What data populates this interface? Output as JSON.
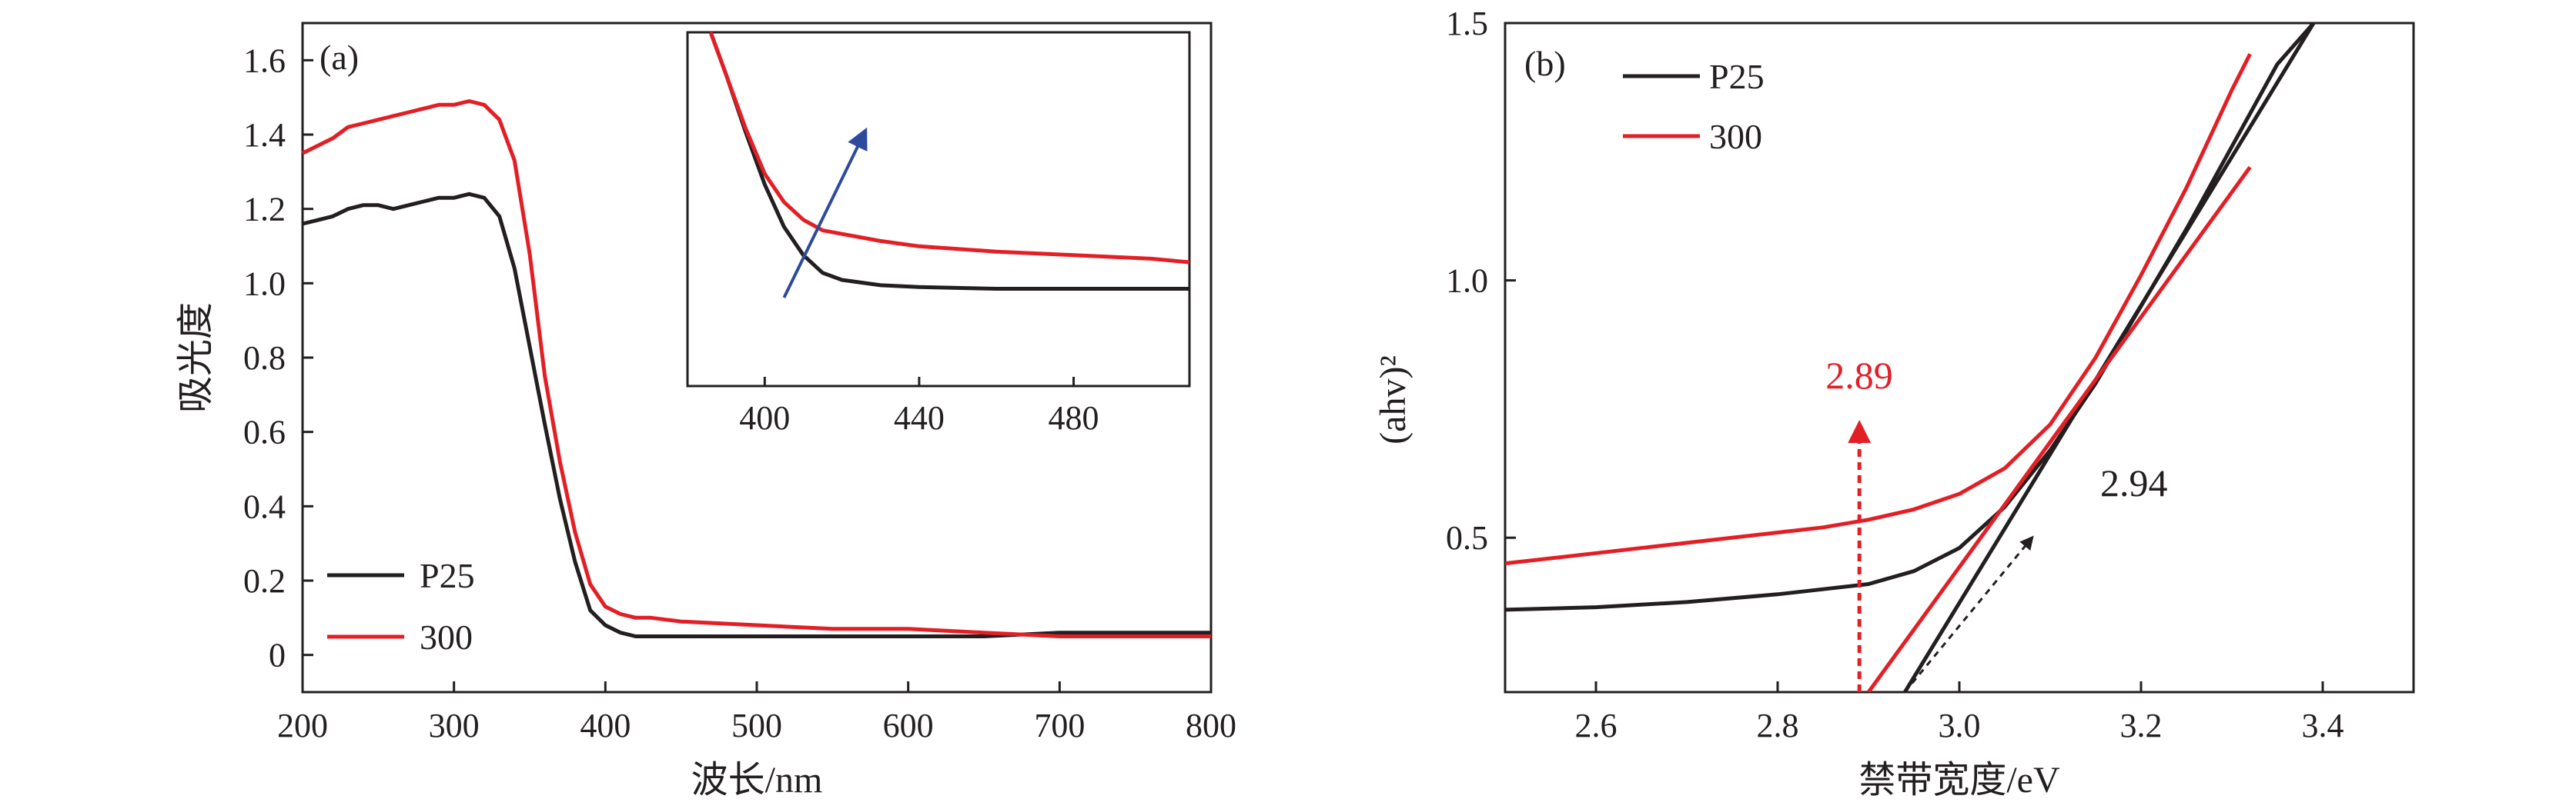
{
  "chart_data": [
    {
      "type": "line",
      "panel_label": "(a)",
      "xlabel": "波长/nm",
      "ylabel": "吸光度",
      "xlim": [
        200,
        800
      ],
      "ylim": [
        -0.1,
        1.7
      ],
      "xticks": [
        "200",
        "300",
        "400",
        "500",
        "600",
        "700",
        "800"
      ],
      "yticks": [
        "0",
        "0.2",
        "0.4",
        "0.6",
        "0.8",
        "1.0",
        "1.2",
        "1.4",
        "1.6"
      ],
      "legend": {
        "position": "bottom-left",
        "entries": [
          "P25",
          "300"
        ]
      },
      "series": [
        {
          "name": "P25",
          "color": "#231f20",
          "x": [
            200,
            210,
            220,
            230,
            240,
            250,
            260,
            270,
            280,
            290,
            300,
            310,
            320,
            330,
            340,
            350,
            360,
            370,
            380,
            390,
            400,
            410,
            420,
            430,
            450,
            500,
            550,
            600,
            650,
            700,
            750,
            800
          ],
          "y": [
            1.16,
            1.17,
            1.18,
            1.2,
            1.21,
            1.21,
            1.2,
            1.21,
            1.22,
            1.23,
            1.23,
            1.24,
            1.23,
            1.18,
            1.04,
            0.83,
            0.62,
            0.42,
            0.25,
            0.12,
            0.08,
            0.06,
            0.05,
            0.05,
            0.05,
            0.05,
            0.05,
            0.05,
            0.05,
            0.06,
            0.06,
            0.06
          ]
        },
        {
          "name": "300",
          "color": "#e31f26",
          "x": [
            200,
            210,
            220,
            230,
            240,
            250,
            260,
            270,
            280,
            290,
            300,
            310,
            320,
            330,
            340,
            350,
            360,
            370,
            380,
            390,
            400,
            410,
            420,
            430,
            450,
            500,
            550,
            600,
            650,
            700,
            750,
            800
          ],
          "y": [
            1.35,
            1.37,
            1.39,
            1.42,
            1.43,
            1.44,
            1.45,
            1.46,
            1.47,
            1.48,
            1.48,
            1.49,
            1.48,
            1.44,
            1.33,
            1.08,
            0.75,
            0.52,
            0.33,
            0.19,
            0.13,
            0.11,
            0.1,
            0.1,
            0.09,
            0.08,
            0.07,
            0.07,
            0.06,
            0.05,
            0.05,
            0.05
          ]
        }
      ],
      "inset": {
        "xlim": [
          380,
          510
        ],
        "ylim": [
          0,
          1
        ],
        "xticks": [
          "400",
          "440",
          "480"
        ],
        "arrow": {
          "from": [
            405,
            0.25
          ],
          "to": [
            426,
            0.72
          ],
          "color": "#2e4a9e"
        },
        "series": [
          {
            "name": "P25",
            "color": "#231f20",
            "x": [
              386,
              390,
              395,
              400,
              405,
              410,
              415,
              420,
              430,
              440,
              460,
              480,
              500,
              510
            ],
            "y": [
              1.0,
              0.88,
              0.72,
              0.57,
              0.45,
              0.37,
              0.32,
              0.3,
              0.285,
              0.28,
              0.275,
              0.275,
              0.275,
              0.275
            ]
          },
          {
            "name": "300",
            "color": "#e31f26",
            "x": [
              386,
              390,
              395,
              400,
              405,
              410,
              415,
              420,
              430,
              440,
              460,
              480,
              500,
              510
            ],
            "y": [
              1.0,
              0.88,
              0.73,
              0.6,
              0.52,
              0.47,
              0.44,
              0.43,
              0.41,
              0.395,
              0.38,
              0.37,
              0.36,
              0.35
            ]
          }
        ]
      }
    },
    {
      "type": "line",
      "panel_label": "(b)",
      "xlabel": "禁带宽度/eV",
      "ylabel": "(ahv)²",
      "xlim": [
        2.5,
        3.5
      ],
      "ylim": [
        0.2,
        1.5
      ],
      "xticks": [
        "2.6",
        "2.8",
        "3.0",
        "3.2",
        "3.4"
      ],
      "yticks": [
        "0.5",
        "1.0",
        "1.5"
      ],
      "legend": {
        "position": "top-left",
        "entries": [
          "P25",
          "300"
        ]
      },
      "series": [
        {
          "name": "P25",
          "color": "#231f20",
          "x": [
            2.5,
            2.6,
            2.7,
            2.8,
            2.85,
            2.9,
            2.95,
            3.0,
            3.05,
            3.1,
            3.15,
            3.2,
            3.25,
            3.3,
            3.35,
            3.39
          ],
          "y": [
            0.36,
            0.365,
            0.375,
            0.39,
            0.4,
            0.41,
            0.435,
            0.48,
            0.56,
            0.67,
            0.8,
            0.95,
            1.1,
            1.26,
            1.42,
            1.5
          ]
        },
        {
          "name": "300",
          "color": "#e31f26",
          "x": [
            2.5,
            2.6,
            2.7,
            2.8,
            2.85,
            2.9,
            2.95,
            3.0,
            3.05,
            3.1,
            3.15,
            3.2,
            3.25,
            3.3,
            3.32
          ],
          "y": [
            0.45,
            0.47,
            0.49,
            0.51,
            0.52,
            0.535,
            0.555,
            0.585,
            0.635,
            0.72,
            0.85,
            1.01,
            1.18,
            1.37,
            1.44
          ]
        }
      ],
      "tangents": [
        {
          "name": "P25 tangent",
          "color": "#231f20",
          "from": [
            2.94,
            0.2
          ],
          "to": [
            3.39,
            1.5
          ]
        },
        {
          "name": "300 tangent",
          "color": "#e31f26",
          "from": [
            2.9,
            0.2
          ],
          "to": [
            3.32,
            1.22
          ]
        }
      ],
      "annotations": [
        {
          "text": "2.89",
          "color": "#e31f26",
          "arrow_x": 2.89,
          "arrow_from_y": 0.2,
          "arrow_to_y": 0.72
        },
        {
          "text": "2.94",
          "color": "#231f20",
          "arrow_from": [
            2.94,
            0.2
          ],
          "arrow_to": [
            3.08,
            0.5
          ]
        }
      ]
    }
  ]
}
